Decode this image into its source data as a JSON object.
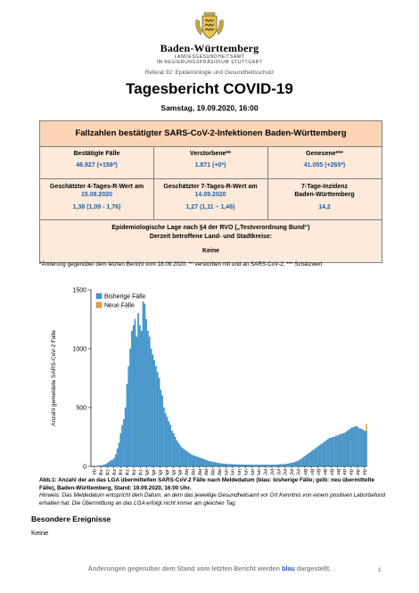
{
  "header": {
    "org": "Baden-Württemberg",
    "sub1": "LANDESGESUNDHEITSAMT",
    "sub2": "IM REGIERUNGSPRÄSIDIUM STUTTGART",
    "referat": "Referat 92: Epidemiologie und Gesundheitsschutz",
    "title": "Tagesbericht COVID-19",
    "date": "Samstag, 19.09.2020, 16:00"
  },
  "box": {
    "title": "Fallzahlen bestätigter SARS-CoV-2-Infektionen Baden-Württemberg",
    "row1": [
      {
        "label": "Bestätigte Fälle",
        "value": "46.927",
        "delta": "(+156*)"
      },
      {
        "label": "Verstorbene**",
        "value": "1.871",
        "delta": "(+0*)"
      },
      {
        "label": "Genesene***",
        "value": "41.055",
        "delta": "(+265*)"
      }
    ],
    "row2": [
      {
        "label": "Geschätzter 4-Tages-R-Wert am",
        "date": "15.09.2020",
        "value": "1,38 (1,09 - 1,76)"
      },
      {
        "label": "Geschätzter 7-Tages-R-Wert am",
        "date": "14.09.2020",
        "value": "1,27 (1,11 – 1,46)"
      },
      {
        "label": "7-Tage-Inzidenz",
        "label2": "Baden-Württemberg",
        "value": "14,2"
      }
    ],
    "row3": {
      "line1": "Epidemiologische Lage nach §4 der RVO („Testverordnung Bund“)",
      "line2": "Derzeit betroffene Land- und Stadtkreise:",
      "value": "Keine"
    }
  },
  "footnote": "*Änderung gegenüber dem letzten Bericht vom 18.09.2020; ** verstorben mit und an SARS-CoV-2; *** Schätzwert",
  "colors": {
    "bisherige": "#3a9bd8",
    "neue": "#f0a030"
  },
  "chart_data": {
    "type": "bar",
    "ylabel": "Anzahl gemeldete SARS-CoV-2 Fälle",
    "ylim": [
      0,
      1500
    ],
    "yticks": [
      "0",
      "500",
      "1000",
      "1500"
    ],
    "xticks": [
      "25 Feb",
      "01 Mrz",
      "06 Mrz",
      "11 Mrz",
      "16 Mrz",
      "21 Mrz",
      "26 Mrz",
      "31 Mrz",
      "05 Apr",
      "10 Apr",
      "15 Apr",
      "20 Apr",
      "25 Apr",
      "30 Apr",
      "05 Mai",
      "10 Mai",
      "15 Mai",
      "20 Mai",
      "25 Mai",
      "30 Mai",
      "04 Jun",
      "09 Jun",
      "14 Jun",
      "19 Jun",
      "24 Jun",
      "29 Jun",
      "04 Jul",
      "09 Jul",
      "14 Jul",
      "19 Jul",
      "24 Jul",
      "29 Jul",
      "03 Aug",
      "08 Aug",
      "13 Aug",
      "18 Aug",
      "23 Aug",
      "28 Aug",
      "02 Sep",
      "07 Sep",
      "12 Sep",
      "17 Sep"
    ],
    "legend": [
      "Bisherige Fälle",
      "Neue Fälle"
    ],
    "legend_position": "top-left",
    "series": [
      {
        "name": "Bisherige Fälle",
        "values": [
          1,
          2,
          3,
          2,
          4,
          6,
          8,
          10,
          15,
          20,
          30,
          40,
          50,
          55,
          70,
          100,
          150,
          200,
          280,
          350,
          400,
          500,
          700,
          850,
          1000,
          1150,
          1200,
          1250,
          1100,
          1300,
          1200,
          1150,
          1400,
          1380,
          1250,
          1150,
          1100,
          1000,
          950,
          900,
          850,
          800,
          750,
          650,
          600,
          500,
          450,
          420,
          380,
          350,
          300,
          280,
          250,
          220,
          200,
          180,
          160,
          150,
          140,
          130,
          120,
          110,
          100,
          95,
          90,
          85,
          80,
          75,
          70,
          65,
          60,
          55,
          50,
          45,
          40,
          40,
          35,
          35,
          30,
          28,
          25,
          24,
          22,
          20,
          20,
          18,
          18,
          18,
          17,
          16,
          16,
          15,
          15,
          15,
          14,
          14,
          14,
          13,
          13,
          13,
          12,
          12,
          12,
          12,
          12,
          12,
          12,
          12,
          12,
          12,
          12,
          13,
          13,
          14,
          14,
          15,
          15,
          16,
          17,
          18,
          19,
          20,
          22,
          25,
          28,
          30,
          35,
          40,
          45,
          50,
          60,
          70,
          80,
          90,
          100,
          110,
          120,
          130,
          140,
          150,
          160,
          170,
          180,
          190,
          200,
          210,
          220,
          230,
          240,
          240,
          250,
          250,
          260,
          260,
          270,
          270,
          280,
          280,
          290,
          300,
          310,
          320,
          330,
          330,
          340,
          340,
          330,
          320,
          320,
          310,
          300,
          300
        ],
        "note": "daily values (approx.)"
      },
      {
        "name": "Neue Fälle",
        "values": [
          60
        ],
        "note": "last day only"
      }
    ]
  },
  "caption": {
    "bold": "Abb.1: Anzahl der an das LGA übermittelten SARS-CoV-2 Fälle nach Meldedatum (blau: bisherige Fälle; gelb: neu übermittelte Fälle), Baden-Württemberg, Stand: 19.09.2020, 16:00 Uhr.",
    "italic": "Hinweis: Das Meldedatum entspricht dem Datum, an dem das jeweilige Gesundheitsamt vor Ort Kenntnis von einem positiven Laborbefund erhalten hat. Die Übermittlung an das LGA erfolgt nicht immer am gleichen Tag."
  },
  "events": {
    "heading": "Besondere Ereignisse",
    "body": "Keine"
  },
  "footer": {
    "pre": "Änderungen gegenüber dem Stand vom letzten Bericht werden",
    "blue": "blau",
    "post": "dargestellt.",
    "page": "1"
  }
}
